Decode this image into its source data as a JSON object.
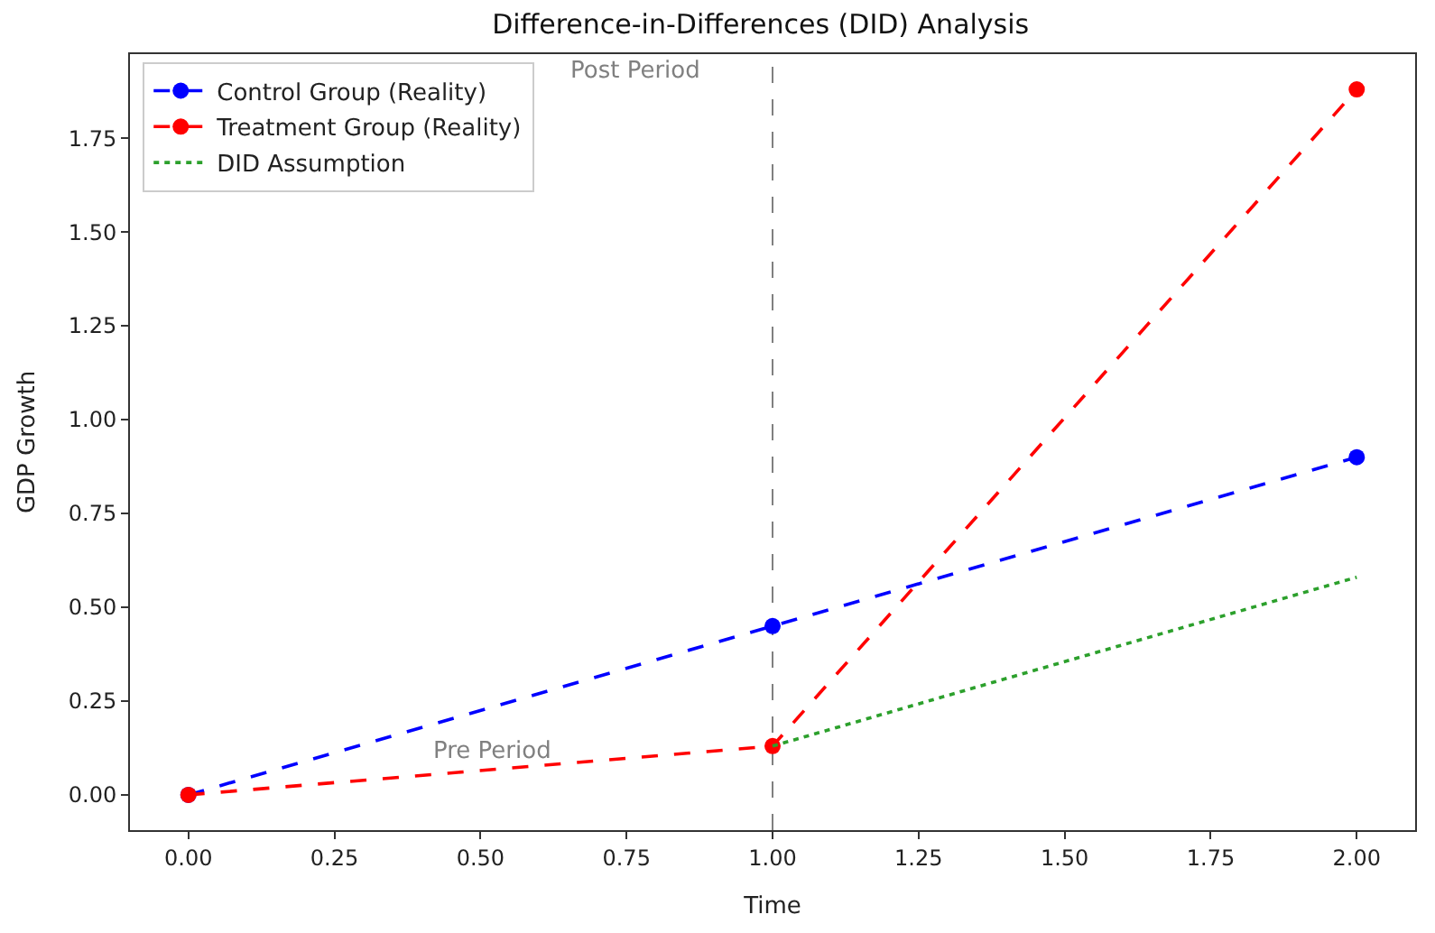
{
  "chart_data": {
    "type": "line",
    "title": "Difference-in-Differences (DID) Analysis",
    "xlabel": "Time",
    "ylabel": "GDP Growth",
    "series": [
      {
        "name": "Control Group (Reality)",
        "color": "#0000ff",
        "x": [
          0,
          1,
          2
        ],
        "values": [
          0,
          0.45,
          0.9
        ],
        "line_style": "dashed",
        "marker": "circle"
      },
      {
        "name": "Treatment Group (Reality)",
        "color": "#ff0000",
        "x": [
          0,
          1,
          2
        ],
        "values": [
          0,
          0.13,
          1.88
        ],
        "line_style": "dashed",
        "marker": "circle"
      },
      {
        "name": "DID Assumption",
        "color": "#2ca02c",
        "x": [
          1,
          2
        ],
        "values": [
          0.13,
          0.58
        ],
        "line_style": "dotted",
        "marker": "none"
      }
    ],
    "xlim": [
      -0.1,
      2.1
    ],
    "xticks": [
      {
        "value": 0,
        "label": "0.00"
      },
      {
        "value": 0.25,
        "label": "0.25"
      },
      {
        "value": 0.5,
        "label": "0.50"
      },
      {
        "value": 0.75,
        "label": "0.75"
      },
      {
        "value": 1,
        "label": "1.00"
      },
      {
        "value": 1.25,
        "label": "1.25"
      },
      {
        "value": 1.5,
        "label": "1.50"
      },
      {
        "value": 1.75,
        "label": "1.75"
      },
      {
        "value": 2,
        "label": "2.00"
      }
    ],
    "ylim": [
      -0.094,
      1.974
    ],
    "yticks": [
      {
        "value": 0,
        "label": "0.00"
      },
      {
        "value": 0.25,
        "label": "0.25"
      },
      {
        "value": 0.5,
        "label": "0.50"
      },
      {
        "value": 0.75,
        "label": "0.75"
      },
      {
        "value": 1,
        "label": "1.00"
      },
      {
        "value": 1.25,
        "label": "1.25"
      },
      {
        "value": 1.5,
        "label": "1.50"
      },
      {
        "value": 1.75,
        "label": "1.75"
      }
    ],
    "ref_lines": [
      {
        "axis": "x",
        "value": 1,
        "color": "#808080",
        "line_style": "dashed"
      }
    ],
    "annotations": [
      "Pre Period",
      "Post Period"
    ],
    "legend": "top left",
    "grid": false
  }
}
